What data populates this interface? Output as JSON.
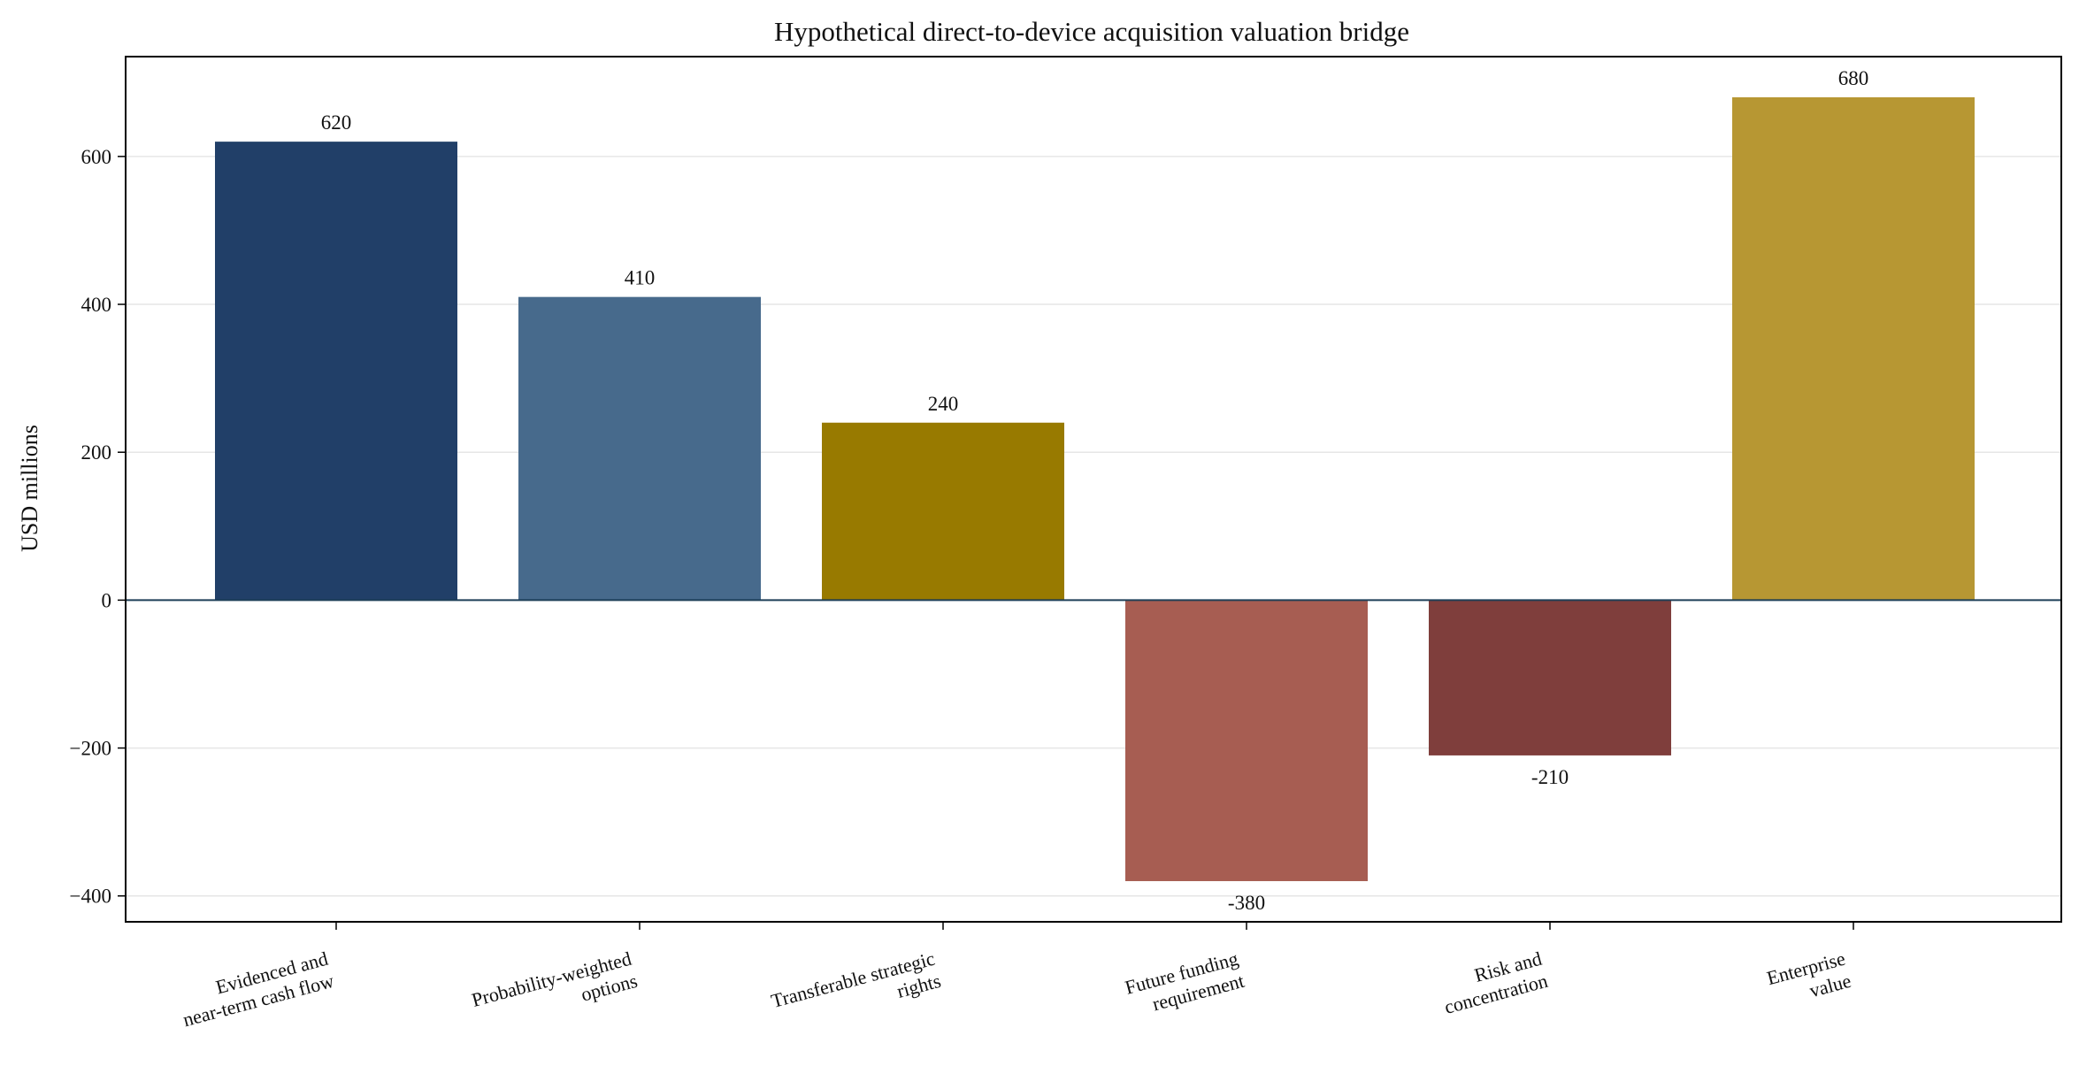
{
  "chart_data": {
    "type": "bar",
    "title": "Hypothetical direct-to-device acquisition valuation bridge",
    "xlabel": "",
    "ylabel": "USD millions",
    "ylim": [
      -435,
      735
    ],
    "yticks": [
      -400,
      -200,
      0,
      200,
      400,
      600
    ],
    "ytick_labels": [
      "−400",
      "−200",
      "0",
      "200",
      "400",
      "600"
    ],
    "grid": "horizontal",
    "categories": [
      [
        "Evidenced and",
        "near-term cash flow"
      ],
      [
        "Probability-weighted",
        "options"
      ],
      [
        "Transferable strategic",
        "rights"
      ],
      [
        "Future funding",
        "requirement"
      ],
      [
        "Risk and",
        "concentration"
      ],
      [
        "Enterprise",
        "value"
      ]
    ],
    "values": [
      620,
      410,
      240,
      -380,
      -210,
      680
    ],
    "value_labels": [
      "620",
      "410",
      "240",
      "-380",
      "-210",
      "680"
    ],
    "colors": [
      "#213f68",
      "#476a8c",
      "#987a00",
      "#a75d52",
      "#7f3e3c",
      "#b79733"
    ]
  }
}
